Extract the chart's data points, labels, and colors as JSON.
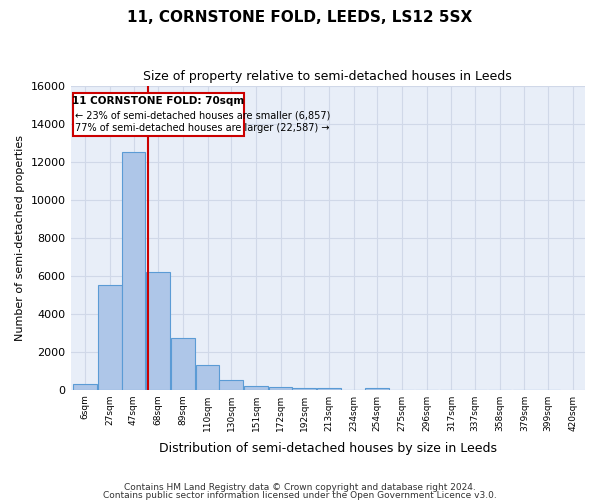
{
  "title1": "11, CORNSTONE FOLD, LEEDS, LS12 5SX",
  "title2": "Size of property relative to semi-detached houses in Leeds",
  "xlabel": "Distribution of semi-detached houses by size in Leeds",
  "ylabel": "Number of semi-detached properties",
  "property_size": 70,
  "property_label": "11 CORNSTONE FOLD: 70sqm",
  "pct_smaller": 23,
  "count_smaller": 6857,
  "pct_larger": 77,
  "count_larger": 22587,
  "bin_labels": [
    "6sqm",
    "27sqm",
    "47sqm",
    "68sqm",
    "89sqm",
    "110sqm",
    "130sqm",
    "151sqm",
    "172sqm",
    "192sqm",
    "213sqm",
    "234sqm",
    "254sqm",
    "275sqm",
    "296sqm",
    "317sqm",
    "337sqm",
    "358sqm",
    "379sqm",
    "399sqm",
    "420sqm"
  ],
  "bin_edges": [
    6,
    27,
    47,
    68,
    89,
    110,
    130,
    151,
    172,
    192,
    213,
    234,
    254,
    275,
    296,
    317,
    337,
    358,
    379,
    399,
    420
  ],
  "bar_heights": [
    300,
    5500,
    12500,
    6200,
    2700,
    1300,
    500,
    200,
    150,
    100,
    75,
    0,
    100,
    0,
    0,
    0,
    0,
    0,
    0,
    0
  ],
  "bar_color": "#aec6e8",
  "bar_edge_color": "#5b9bd5",
  "vline_x": 70,
  "vline_color": "#cc0000",
  "box_color": "#cc0000",
  "ylim": [
    0,
    16000
  ],
  "yticks": [
    0,
    2000,
    4000,
    6000,
    8000,
    10000,
    12000,
    14000,
    16000
  ],
  "grid_color": "#d0d8e8",
  "bg_color": "#e8eef8",
  "footer1": "Contains HM Land Registry data © Crown copyright and database right 2024.",
  "footer2": "Contains public sector information licensed under the Open Government Licence v3.0."
}
